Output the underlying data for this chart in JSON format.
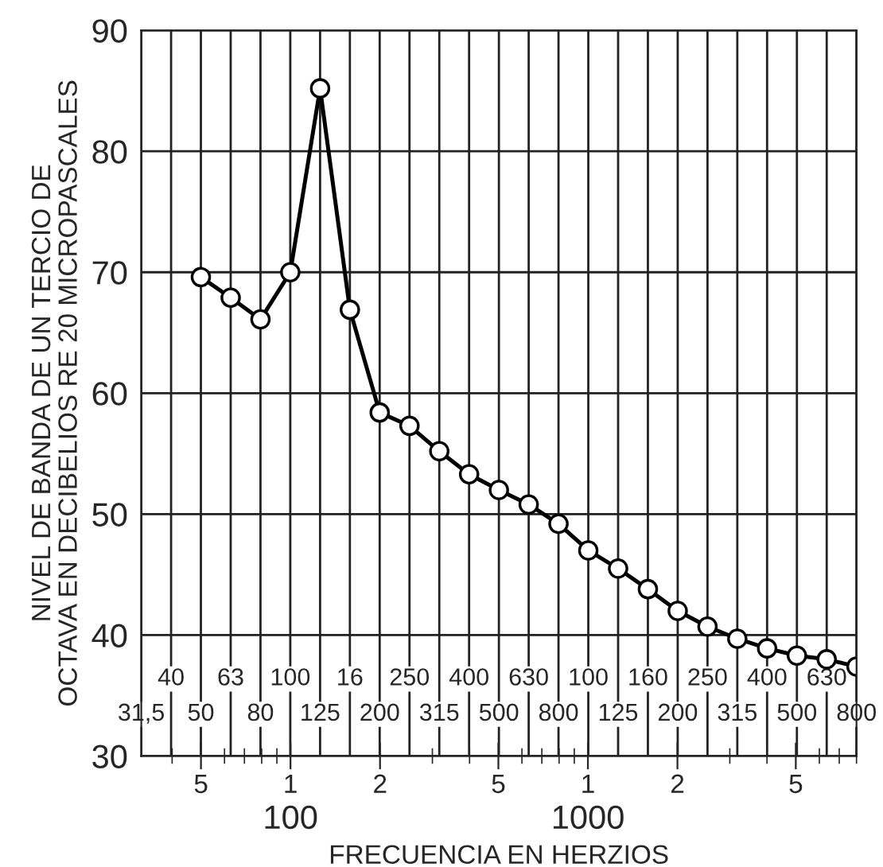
{
  "chart_data": {
    "type": "line",
    "xlabel": "FRECUENCIA EN HERZIOS",
    "ylabel": "NIVEL DE BANDA DE UN TERCIO DE\nOCTAVA EN DECIBELIOS RE 20 MICROPASCALES",
    "categories": [
      "31,5",
      "40",
      "50",
      "63",
      "80",
      "100",
      "125",
      "16",
      "200",
      "250",
      "315",
      "400",
      "500",
      "630",
      "800",
      "100",
      "125",
      "160",
      "200",
      "250",
      "315",
      "400",
      "500",
      "630",
      "800"
    ],
    "series": [
      {
        "color": "#000000",
        "values": [
          null,
          null,
          69.6,
          67.9,
          66.1,
          70.0,
          85.2,
          66.9,
          58.4,
          57.3,
          55.2,
          53.3,
          52.0,
          50.8,
          49.2,
          47.0,
          45.5,
          43.8,
          42.0,
          40.7,
          39.7,
          38.9,
          38.3,
          38.0,
          37.4
        ]
      }
    ],
    "ylim": [
      30,
      90
    ],
    "yticks": [
      30,
      40,
      50,
      60,
      70,
      80,
      90
    ],
    "x2lim": [
      31.5,
      8000
    ],
    "x2ticks": [
      {
        "value": 50,
        "label": null
      },
      {
        "value": 100,
        "label": "100"
      },
      {
        "value": 200,
        "label": null
      },
      {
        "value": 500,
        "label": null
      },
      {
        "value": 1000,
        "label": "1000"
      },
      {
        "value": 2000,
        "label": null
      },
      {
        "value": 5000,
        "label": null
      }
    ],
    "annotations": [
      "5",
      "1",
      "2",
      "5",
      "1",
      "2",
      "5"
    ],
    "log": "x2",
    "grid": true,
    "marker": "circle",
    "line_style": "solid",
    "legend": false
  }
}
